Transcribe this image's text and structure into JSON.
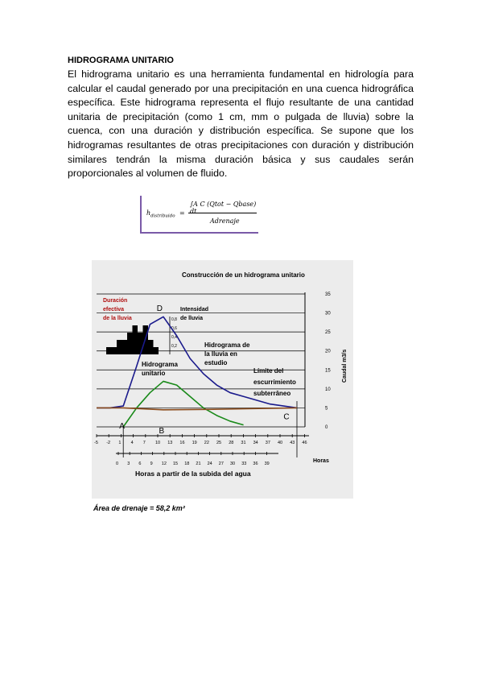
{
  "heading": "HIDROGRAMA UNITARIO",
  "paragraph": "El hidrograma unitario es una herramienta fundamental en hidrología para calcular el caudal generado por una precipitación en una cuenca hidrográfica específica. Este hidrograma representa el flujo resultante de una cantidad unitaria de precipitación (como 1 cm, mm o pulgada de lluvia) sobre la cuenca, con una duración y distribución específica. Se supone que los hidrogramas resultantes de otras precipitaciones con duración y distribución similares tendrán la misma duración básica y sus caudales serán proporcionales al volumen de fluido.",
  "formula": {
    "lhs": "h",
    "lhs_sub": "distribuido",
    "equals": "=",
    "numerator": "∫A C (Qtot − Qbase) dt",
    "denominator": "Adrenaje"
  },
  "chart_data": {
    "type": "line",
    "title": "Construcción de un hidrograma unitario",
    "xlabel": "Horas",
    "x2label": "Horas a partir de la subida del agua",
    "ylabel": "Caudal m3/s",
    "x_ticks": [
      "-5",
      "-2",
      "1",
      "4",
      "7",
      "10",
      "13",
      "16",
      "19",
      "22",
      "25",
      "28",
      "31",
      "34",
      "37",
      "40",
      "43",
      "46"
    ],
    "x2_ticks": [
      "0",
      "3",
      "6",
      "9",
      "12",
      "15",
      "18",
      "21",
      "24",
      "27",
      "30",
      "33",
      "36",
      "39"
    ],
    "y_ticks": [
      "0",
      "5",
      "10",
      "15",
      "20",
      "25",
      "30",
      "35"
    ],
    "ylim": [
      0,
      35
    ],
    "rain_label": "Duración efectiva de la lluvia",
    "intensity_label": "Intensidad de lluvia",
    "intensity_ticks": [
      "0,2",
      "0,4",
      "0,6",
      "0,8"
    ],
    "rain_bars": [
      0.2,
      0.2,
      0.4,
      0.4,
      0.6,
      0.8,
      0.6,
      0.8,
      0.4,
      0.2
    ],
    "points": [
      "A",
      "B",
      "C",
      "D"
    ],
    "annotations": [
      "Hidrograma unitario",
      "Hidrograma de la lluvia en estudio",
      "Límite del escurrimiento subterráneo"
    ],
    "series": [
      {
        "name": "Hidrograma de la lluvia en estudio",
        "color": "#1a1a8c",
        "x": [
          -5,
          -2,
          1,
          4,
          7,
          10,
          13,
          16,
          19,
          22,
          25,
          28,
          31,
          34,
          37,
          40
        ],
        "y": [
          5,
          5,
          5.5,
          16,
          27,
          29,
          24,
          18,
          14,
          11,
          9,
          8,
          7,
          6,
          5.5,
          5
        ]
      },
      {
        "name": "Hidrograma unitario",
        "color": "#1a8a1a",
        "x": [
          1,
          4,
          7,
          10,
          13,
          16,
          19,
          22,
          25,
          28
        ],
        "y": [
          0,
          5,
          9,
          12,
          11,
          8,
          5,
          3,
          1.5,
          0.5
        ]
      },
      {
        "name": "Límite del escurrimiento subterráneo",
        "color": "#8a4a1a",
        "x": [
          -5,
          1,
          10,
          20,
          30,
          40
        ],
        "y": [
          5,
          5,
          4.5,
          4.6,
          4.8,
          5
        ]
      }
    ]
  },
  "caption": "Área de drenaje = 58,2 km²"
}
